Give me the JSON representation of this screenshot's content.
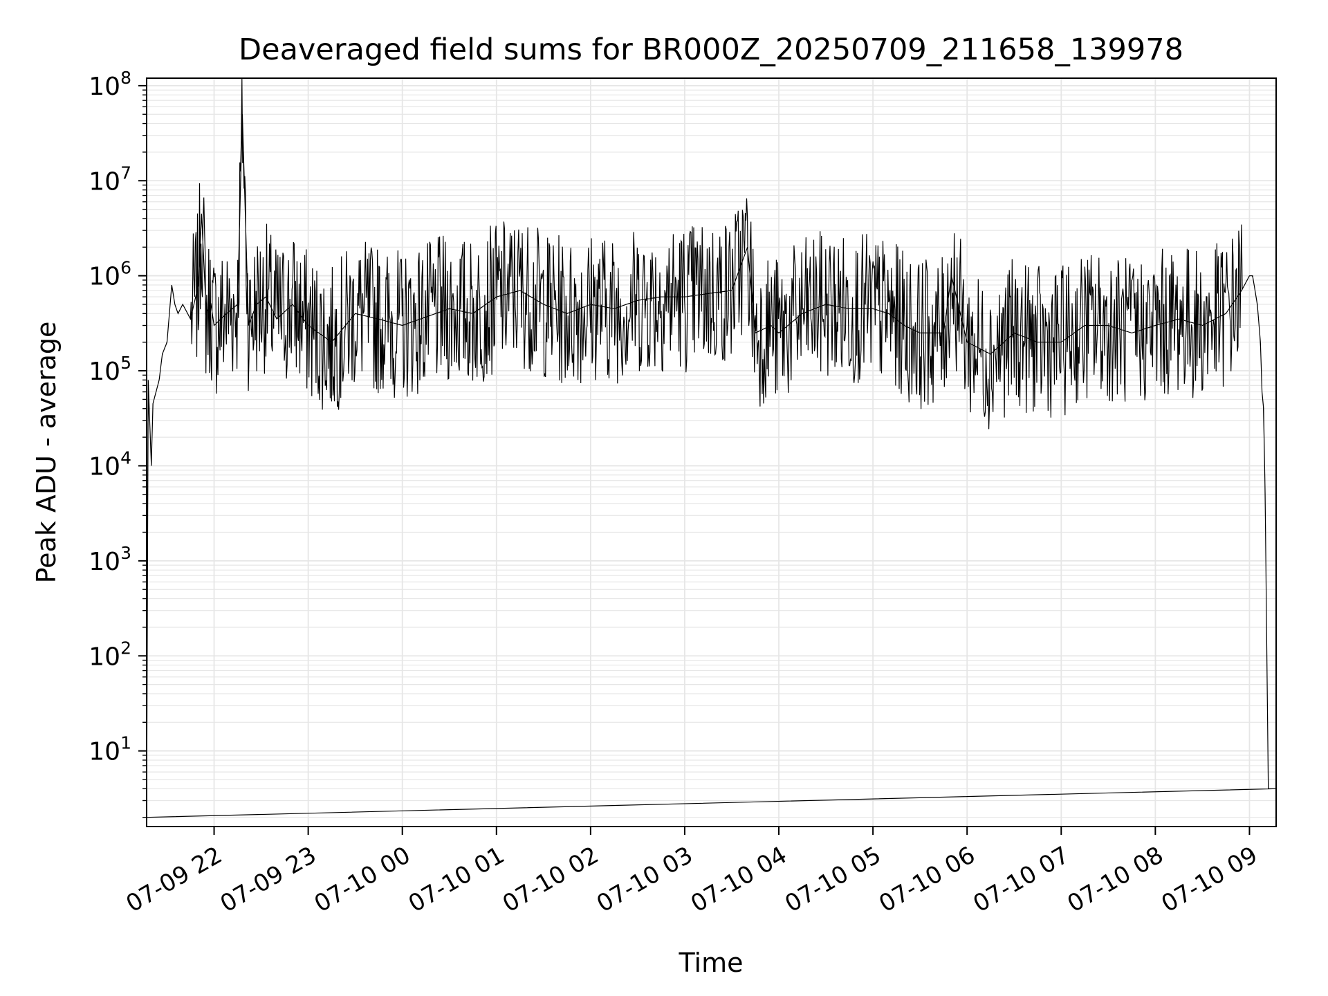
{
  "chart_data": {
    "type": "line",
    "title": "Deaveraged field sums for BR000Z_20250709_211658_139978",
    "xlabel": "Time",
    "ylabel": "Peak ADU - average",
    "y_scale": "log",
    "ylim": [
      1.6,
      120000000
    ],
    "xlim": [
      "2025-07-09 21:17",
      "2025-07-10 09:17"
    ],
    "x_tick_labels": [
      "07-09 22",
      "07-09 23",
      "07-10 00",
      "07-10 01",
      "07-10 02",
      "07-10 03",
      "07-10 04",
      "07-10 05",
      "07-10 06",
      "07-10 07",
      "07-10 08",
      "07-10 09"
    ],
    "y_tick_labels": [
      {
        "base": "10",
        "exp": "1"
      },
      {
        "base": "10",
        "exp": "2"
      },
      {
        "base": "10",
        "exp": "3"
      },
      {
        "base": "10",
        "exp": "4"
      },
      {
        "base": "10",
        "exp": "5"
      },
      {
        "base": "10",
        "exp": "6"
      },
      {
        "base": "10",
        "exp": "7"
      },
      {
        "base": "10",
        "exp": "8"
      }
    ],
    "grid": true,
    "line_color": "#000000",
    "grid_color": "#e6e6e6",
    "series": [
      {
        "x": [
          "2025-07-09 21:17",
          "2025-07-09 21:18",
          "2025-07-09 21:20",
          "2025-07-09 21:21",
          "2025-07-09 21:23",
          "2025-07-09 21:25",
          "2025-07-09 21:27",
          "2025-07-09 21:30",
          "2025-07-09 21:33",
          "2025-07-09 21:35",
          "2025-07-09 21:37",
          "2025-07-09 21:40",
          "2025-07-09 21:45",
          "2025-07-09 21:50",
          "2025-07-09 21:52",
          "2025-07-09 21:55",
          "2025-07-09 21:58",
          "2025-07-09 22:00",
          "2025-07-09 22:08",
          "2025-07-09 22:15",
          "2025-07-09 22:18",
          "2025-07-09 22:22",
          "2025-07-09 22:27",
          "2025-07-09 22:33",
          "2025-07-09 22:40",
          "2025-07-09 22:50",
          "2025-07-09 23:00",
          "2025-07-09 23:15",
          "2025-07-09 23:30",
          "2025-07-09 23:45",
          "2025-07-10 00:00",
          "2025-07-10 00:30",
          "2025-07-10 00:45",
          "2025-07-10 01:00",
          "2025-07-10 01:15",
          "2025-07-10 01:30",
          "2025-07-10 01:45",
          "2025-07-10 02:00",
          "2025-07-10 02:15",
          "2025-07-10 02:30",
          "2025-07-10 02:45",
          "2025-07-10 03:00",
          "2025-07-10 03:15",
          "2025-07-10 03:30",
          "2025-07-10 03:40",
          "2025-07-10 03:45",
          "2025-07-10 03:55",
          "2025-07-10 04:00",
          "2025-07-10 04:15",
          "2025-07-10 04:30",
          "2025-07-10 04:45",
          "2025-07-10 05:00",
          "2025-07-10 05:10",
          "2025-07-10 05:20",
          "2025-07-10 05:30",
          "2025-07-10 05:45",
          "2025-07-10 05:50",
          "2025-07-10 06:00",
          "2025-07-10 06:15",
          "2025-07-10 06:30",
          "2025-07-10 06:45",
          "2025-07-10 07:00",
          "2025-07-10 07:15",
          "2025-07-10 07:30",
          "2025-07-10 07:45",
          "2025-07-10 08:00",
          "2025-07-10 08:15",
          "2025-07-10 08:30",
          "2025-07-10 08:45",
          "2025-07-10 08:55",
          "2025-07-10 09:00",
          "2025-07-10 09:02",
          "2025-07-10 09:05",
          "2025-07-10 09:07",
          "2025-07-10 09:08",
          "2025-07-10 09:09",
          "2025-07-10 09:10",
          "2025-07-10 09:12",
          "2025-07-10 09:14",
          "2025-07-10 09:17"
        ],
        "y": [
          2,
          80000,
          10000,
          45000,
          60000,
          80000,
          150000,
          200000,
          800000,
          500000,
          400000,
          500000,
          350000,
          800000,
          4500000,
          400000,
          500000,
          300000,
          400000,
          500000,
          50000000,
          300000,
          500000,
          600000,
          350000,
          500000,
          300000,
          200000,
          400000,
          350000,
          300000,
          450000,
          400000,
          600000,
          700000,
          500000,
          400000,
          500000,
          450000,
          550000,
          600000,
          600000,
          650000,
          700000,
          2000000,
          250000,
          300000,
          250000,
          400000,
          500000,
          450000,
          450000,
          400000,
          300000,
          250000,
          250000,
          1000000,
          200000,
          150000,
          250000,
          200000,
          200000,
          300000,
          300000,
          250000,
          300000,
          350000,
          300000,
          400000,
          700000,
          1000000,
          1000000,
          500000,
          200000,
          60000,
          40000,
          5000,
          4,
          4,
          4
        ]
      }
    ]
  }
}
